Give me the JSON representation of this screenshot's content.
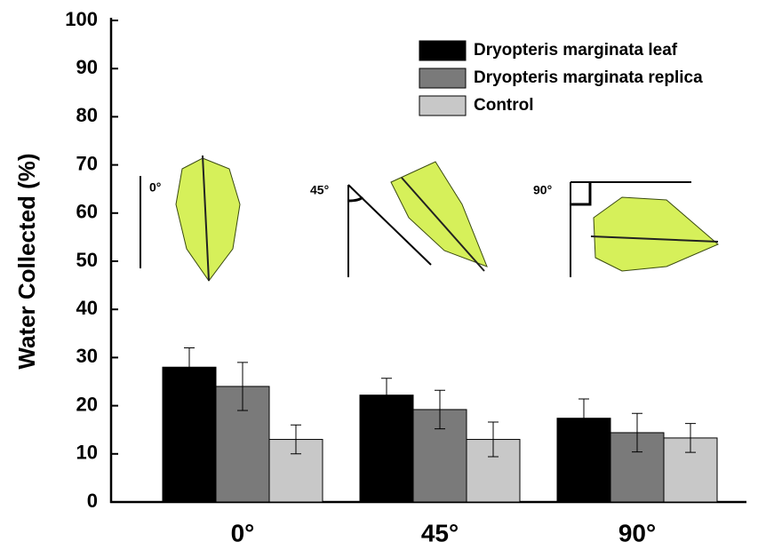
{
  "chart_data": {
    "type": "bar",
    "y_label": "Water Collected (%)",
    "categories": [
      "0°",
      "45°",
      "90°"
    ],
    "series": [
      {
        "name": "Dryopteris marginata leaf",
        "color": "#000000",
        "values": [
          28,
          22.2,
          17.4
        ],
        "errors": [
          4,
          3.5,
          4
        ]
      },
      {
        "name": "Dryopteris marginata replica",
        "color": "#7a7a7a",
        "values": [
          24,
          19.2,
          14.4
        ],
        "errors": [
          5,
          4,
          4
        ]
      },
      {
        "name": "Control",
        "color": "#c8c8c8",
        "values": [
          13,
          13,
          13.3
        ],
        "errors": [
          3,
          3.6,
          3
        ]
      }
    ],
    "annotations": [
      "0°",
      "45°",
      "90°"
    ],
    "ylim": [
      0,
      100
    ],
    "yticks": [
      0,
      10,
      20,
      30,
      40,
      50,
      60,
      70,
      80,
      90,
      100
    ],
    "legend": "upper right"
  }
}
